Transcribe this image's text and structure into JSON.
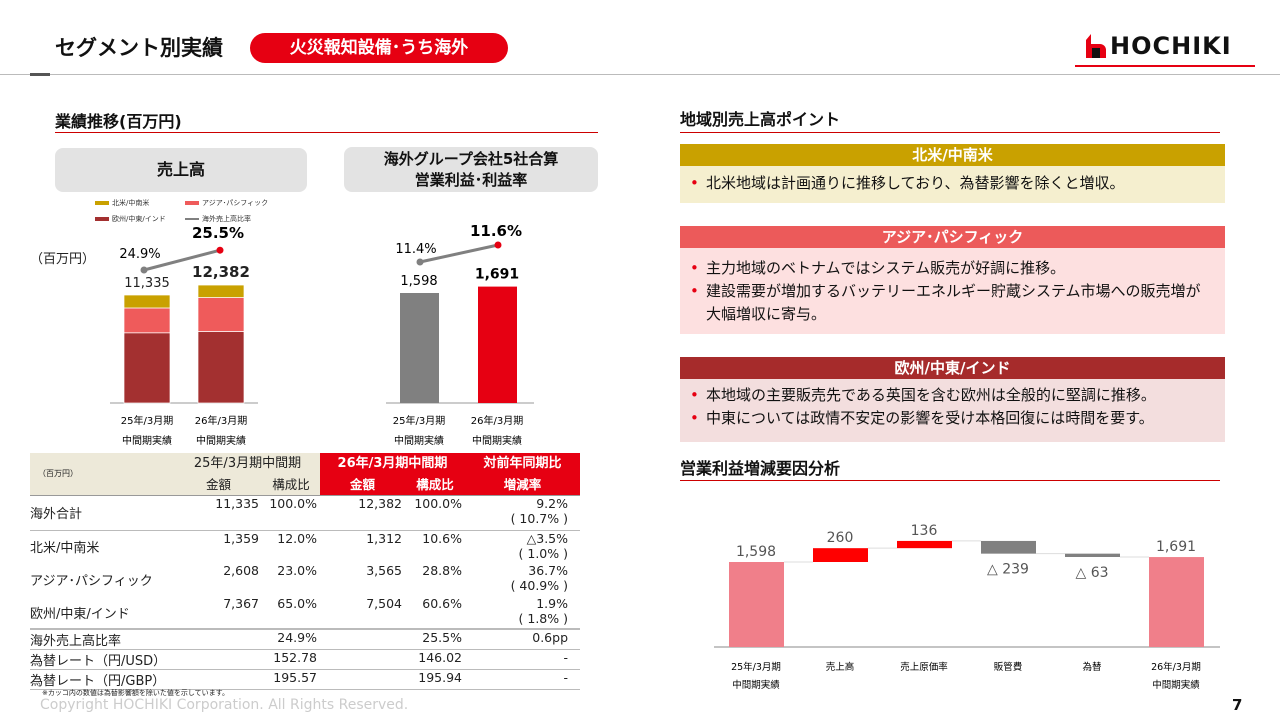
{
  "header": {
    "title": "セグメント別実績",
    "segment_pill": "火災報知設備･うち海外",
    "logo": "HOCHIKI",
    "brand_color": "#e60012"
  },
  "left": {
    "heading": "業績推移(百万円)",
    "sales_box": "売上高",
    "profit_box_line1": "海外グループ会社5社合算",
    "profit_box_line2": "営業利益･利益率",
    "unit": "（百万円）"
  },
  "legend": [
    {
      "label": "北米/中南米",
      "color": "#c9a100"
    },
    {
      "label": "アジア･パシフィック",
      "color": "#ef5b5b"
    },
    {
      "label": "欧州/中東/インド",
      "color": "#a33030"
    },
    {
      "label": "海外売上高比率",
      "color": "#808080"
    }
  ],
  "chart_data": [
    {
      "type": "bar",
      "stacked": true,
      "categories": [
        "25年/3月期 中間期実績",
        "26年/3月期 中間期実績"
      ],
      "category_line1": [
        "25年/3月期",
        "26年/3月期"
      ],
      "category_line2": [
        "中間期実績",
        "中間期実績"
      ],
      "series": [
        {
          "name": "欧州/中東/インド",
          "values": [
            7367,
            7504
          ],
          "color": "#a33030"
        },
        {
          "name": "アジア･パシフィック",
          "values": [
            2608,
            3565
          ],
          "color": "#ef5b5b"
        },
        {
          "name": "北米/中南米",
          "values": [
            1359,
            1312
          ],
          "color": "#c9a100"
        }
      ],
      "totals": [
        "11,335",
        "12,382"
      ],
      "total_values": [
        11335,
        12382
      ],
      "line": {
        "name": "海外売上高比率",
        "values": [
          24.9,
          25.5
        ],
        "labels": [
          "24.9%",
          "25.5%"
        ],
        "color": "#808080"
      }
    },
    {
      "type": "bar",
      "categories": [
        "25年/3月期 中間期実績",
        "26年/3月期 中間期実績"
      ],
      "category_line1": [
        "25年/3月期",
        "26年/3月期"
      ],
      "category_line2": [
        "中間期実績",
        "中間期実績"
      ],
      "values": [
        1598,
        1691
      ],
      "labels": [
        "1,598",
        "1,691"
      ],
      "colors": [
        "#808080",
        "#e60012"
      ],
      "line": {
        "values": [
          11.4,
          11.6
        ],
        "labels": [
          "11.4%",
          "11.6%"
        ]
      }
    },
    {
      "type": "waterfall",
      "title": "営業利益増減要因分析",
      "categories": [
        "25年/3月期 中間期実績",
        "売上高",
        "売上原価率",
        "販管費",
        "為替",
        "26年/3月期 中間期実績"
      ],
      "category_line1": [
        "25年/3月期",
        "売上高",
        "売上原価率",
        "販管費",
        "為替",
        "26年/3月期"
      ],
      "category_line2": [
        "中間期実績",
        "",
        "",
        "",
        "",
        "中間期実績"
      ],
      "values": [
        1598,
        260,
        136,
        -239,
        -63,
        1691
      ],
      "labels": [
        "1,598",
        "260",
        "136",
        "△ 239",
        "△ 63",
        "1,691"
      ],
      "kinds": [
        "total",
        "up",
        "up",
        "down",
        "down",
        "total"
      ],
      "colors": {
        "total": "#f07f8a",
        "up": "#ff0000",
        "down": "#808080"
      }
    }
  ],
  "table": {
    "unit": "（百万円）",
    "group1": "25年/3月期中間期",
    "group2": "26年/3月期中間期",
    "group3": "対前年同期比",
    "sub": [
      "金額",
      "構成比",
      "金額",
      "構成比",
      "増減率"
    ],
    "rows": [
      {
        "label": "海外合計",
        "a": "11,335",
        "b": "100.0%",
        "c": "12,382",
        "d": "100.0%",
        "e": "9.2%",
        "f": "( 10.7% )"
      },
      {
        "label": "北米/中南米",
        "a": "1,359",
        "b": "12.0%",
        "c": "1,312",
        "d": "10.6%",
        "e": "△3.5%",
        "f": "( 1.0% )"
      },
      {
        "label": "アジア･パシフィック",
        "a": "2,608",
        "b": "23.0%",
        "c": "3,565",
        "d": "28.8%",
        "e": "36.7%",
        "f": "( 40.9% )"
      },
      {
        "label": "欧州/中東/インド",
        "a": "7,367",
        "b": "65.0%",
        "c": "7,504",
        "d": "60.6%",
        "e": "1.9%",
        "f": "( 1.8% )"
      },
      {
        "label": "海外売上高比率",
        "a": "",
        "b": "24.9%",
        "c": "",
        "d": "25.5%",
        "e": "0.6pp",
        "f": ""
      },
      {
        "label": "為替レート（円/USD）",
        "a": "",
        "b": "152.78",
        "c": "",
        "d": "146.02",
        "e": "-",
        "f": ""
      },
      {
        "label": "為替レート（円/GBP）",
        "a": "",
        "b": "195.57",
        "c": "",
        "d": "195.94",
        "e": "-",
        "f": ""
      }
    ],
    "note": "※カッコ内の数値は為替影響額を除いた値を示しています。"
  },
  "right": {
    "heading": "地域別売上高ポイント",
    "regions": [
      {
        "title": "北米/中南米",
        "color": "#c9a100",
        "bg": "#f5efcf",
        "bullets": [
          "北米地域は計画通りに推移しており、為替影響を除くと増収。"
        ]
      },
      {
        "title": "アジア･パシフィック",
        "color": "#ec5a5a",
        "bg": "#fde0e0",
        "bullets": [
          "主力地域のベトナムではシステム販売が好調に推移。",
          "建設需要が増加するバッテリーエネルギー貯蔵システム市場への販売増が大幅増収に寄与。"
        ]
      },
      {
        "title": "欧州/中東/インド",
        "color": "#a62b2b",
        "bg": "#f3dede",
        "bullets": [
          "本地域の主要販売先である英国を含む欧州は全般的に堅調に推移。",
          "中東については政情不安定の影響を受け本格回復には時間を要す。"
        ]
      }
    ],
    "waterfall_heading": "営業利益増減要因分析"
  },
  "footer": {
    "copyright": "Copyright HOCHIKI Corporation. All Rights Reserved.",
    "page": "7"
  }
}
